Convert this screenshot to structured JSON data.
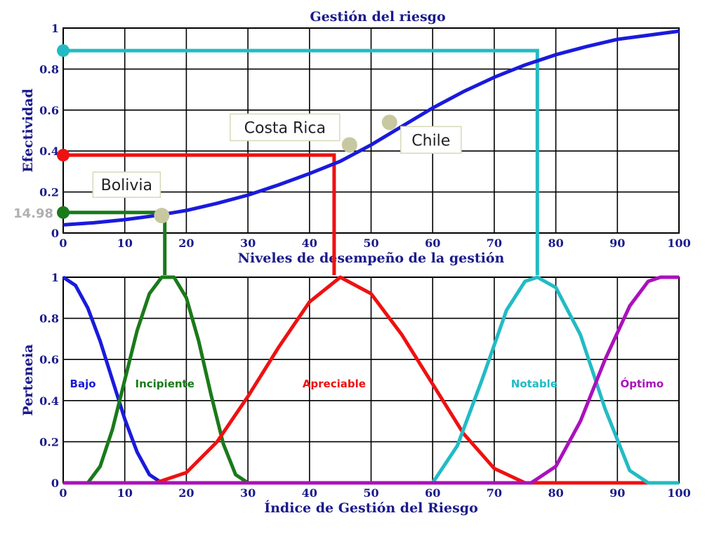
{
  "chart_data": [
    {
      "type": "line",
      "title": "Gestión del riesgo",
      "xlabel": "Niveles de desempeño de la gestión",
      "ylabel": "Efectividad",
      "xlim": [
        0,
        100
      ],
      "ylim": [
        0,
        1
      ],
      "xticks": [
        "0",
        "10",
        "20",
        "30",
        "40",
        "50",
        "60",
        "70",
        "80",
        "90",
        "100"
      ],
      "yticks": [
        "0",
        "0.2",
        "0.4",
        "0.6",
        "0.8",
        "1"
      ],
      "grid": true,
      "series": [
        {
          "color": "#1a1adc",
          "x": [
            0,
            5,
            10,
            15,
            20,
            25,
            30,
            35,
            40,
            45,
            50,
            55,
            60,
            65,
            70,
            75,
            80,
            85,
            90,
            95,
            100
          ],
          "y": [
            0.04,
            0.05,
            0.065,
            0.085,
            0.11,
            0.145,
            0.185,
            0.235,
            0.29,
            0.35,
            0.43,
            0.52,
            0.61,
            0.69,
            0.76,
            0.82,
            0.87,
            0.91,
            0.945,
            0.965,
            0.985
          ]
        }
      ],
      "annotations": [
        {
          "label": "Bolivia",
          "x": 16,
          "y": 0.085,
          "color": "#c8c8a0"
        },
        {
          "label": "Costa Rica",
          "x": 46.5,
          "y": 0.43,
          "color": "#c8c8a0"
        },
        {
          "label": "Chile",
          "x": 53,
          "y": 0.54,
          "color": "#c8c8a0"
        }
      ],
      "guides": [
        {
          "x": 16.5,
          "y": 0.1,
          "color": "#1a7a1a",
          "value_label": "14.98"
        },
        {
          "x": 44,
          "y": 0.38,
          "color": "#ee1111"
        },
        {
          "x": 77,
          "y": 0.89,
          "color": "#22bbc4"
        }
      ]
    },
    {
      "type": "line",
      "xlabel": "Índice de Gestión del Riesgo",
      "ylabel": "Perteneia",
      "xlim": [
        0,
        100
      ],
      "ylim": [
        0,
        1
      ],
      "xticks": [
        "0",
        "10",
        "20",
        "30",
        "40",
        "50",
        "60",
        "70",
        "80",
        "90",
        "100"
      ],
      "yticks": [
        "0",
        "0.2",
        "0.4",
        "0.6",
        "0.8",
        "1"
      ],
      "grid": true,
      "series": [
        {
          "name": "Bajo",
          "color": "#1a1adc",
          "x": [
            0,
            2,
            4,
            6,
            8,
            10,
            12,
            14,
            16,
            100
          ],
          "y": [
            1,
            0.96,
            0.85,
            0.69,
            0.5,
            0.31,
            0.15,
            0.04,
            0,
            0
          ]
        },
        {
          "name": "Incipiente",
          "color": "#1a7a1a",
          "x": [
            0,
            4,
            6,
            8,
            10,
            12,
            14,
            16,
            18,
            20,
            22,
            24,
            26,
            28,
            30,
            100
          ],
          "y": [
            0,
            0,
            0.08,
            0.26,
            0.5,
            0.74,
            0.92,
            1,
            1,
            0.9,
            0.69,
            0.43,
            0.19,
            0.04,
            0,
            0
          ]
        },
        {
          "name": "Apreciable",
          "color": "#ee1111",
          "x": [
            0,
            15,
            20,
            25,
            30,
            35,
            40,
            45,
            50,
            55,
            60,
            65,
            70,
            75,
            77,
            100
          ],
          "y": [
            0,
            0,
            0.05,
            0.2,
            0.42,
            0.66,
            0.88,
            1,
            0.92,
            0.72,
            0.48,
            0.24,
            0.07,
            0,
            0,
            0
          ]
        },
        {
          "name": "Notable",
          "color": "#22bbc4",
          "x": [
            0,
            60,
            64,
            68,
            72,
            75,
            77,
            80,
            84,
            88,
            92,
            95,
            100
          ],
          "y": [
            0,
            0,
            0.18,
            0.5,
            0.84,
            0.98,
            1,
            0.95,
            0.72,
            0.36,
            0.06,
            0,
            0
          ]
        },
        {
          "name": "Óptimo",
          "color": "#aa11bb",
          "x": [
            0,
            76,
            80,
            84,
            88,
            92,
            95,
            97,
            100
          ],
          "y": [
            0,
            0,
            0.08,
            0.3,
            0.6,
            0.86,
            0.98,
            1,
            1
          ]
        }
      ],
      "series_labels": [
        {
          "name": "Bajo",
          "x": 3.2,
          "y": 0.45
        },
        {
          "name": "Incipiente",
          "x": 16.5,
          "y": 0.45
        },
        {
          "name": "Apreciable",
          "x": 44,
          "y": 0.45
        },
        {
          "name": "Notable",
          "x": 76.5,
          "y": 0.45
        },
        {
          "name": "Óptimo",
          "x": 94,
          "y": 0.45
        }
      ]
    }
  ]
}
